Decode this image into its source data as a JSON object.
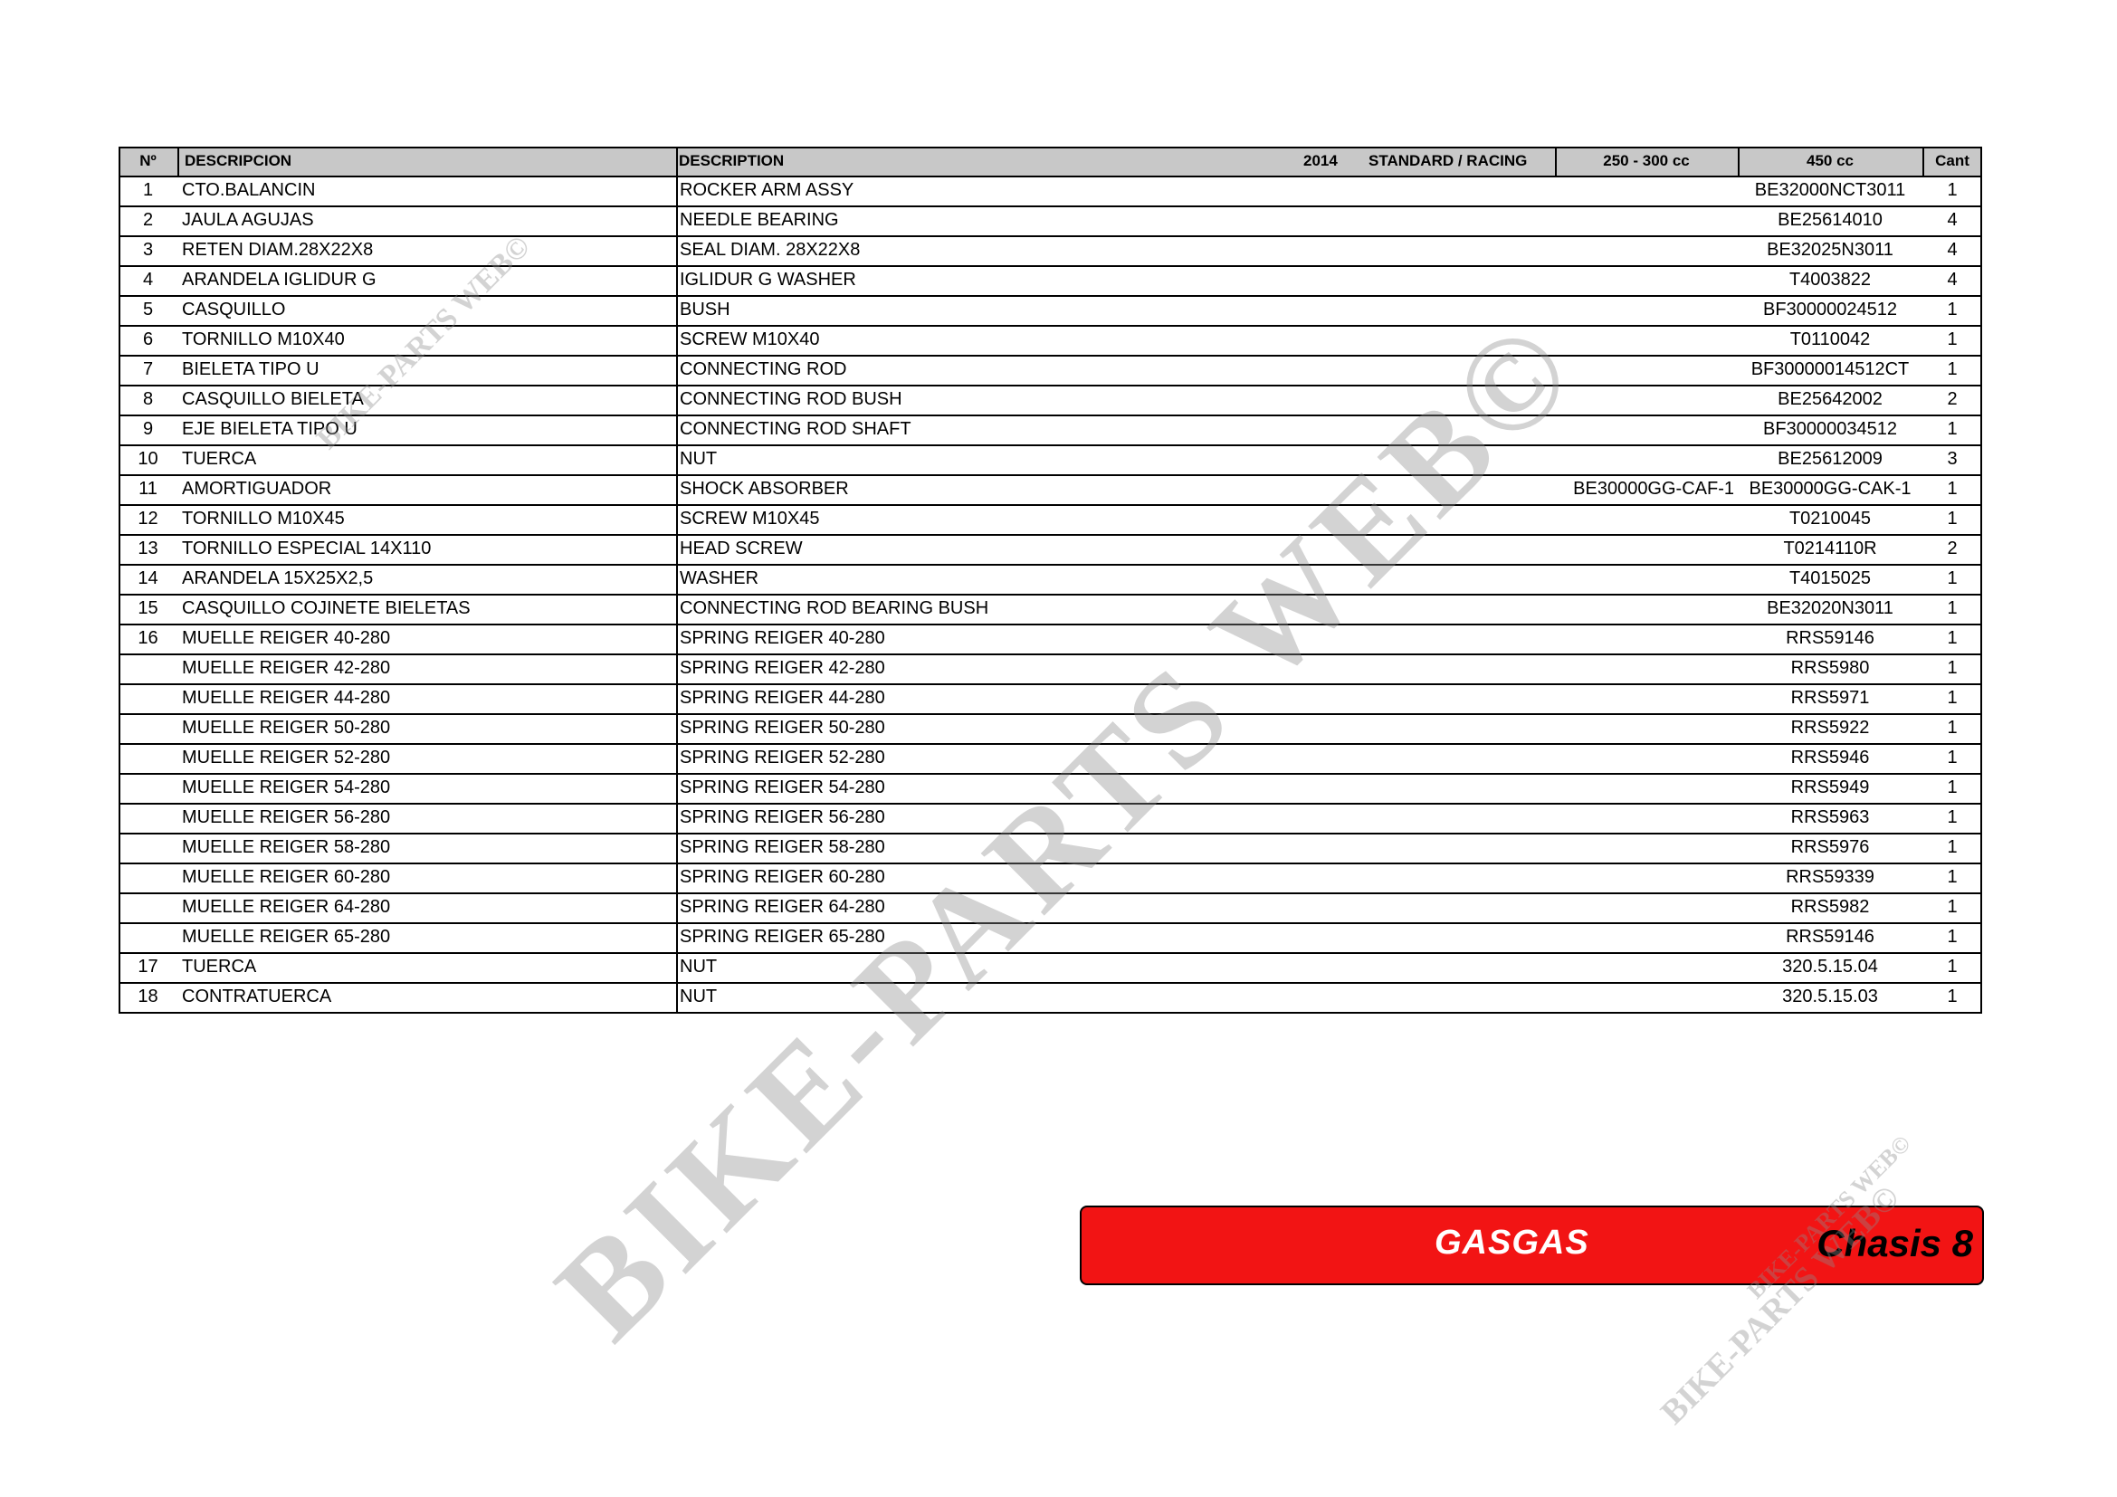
{
  "header": {
    "columns": {
      "no": "Nº",
      "descripcion": "DESCRIPCION",
      "description": "DESCRIPTION",
      "year": "2014",
      "version": "STANDARD / RACING",
      "ref_250": "250 - 300 cc",
      "ref_450": "450 cc",
      "cant": "Cant"
    }
  },
  "table": {
    "rows": [
      {
        "no": 1,
        "descripcion": "CTO.BALANCIN",
        "description": "ROCKER ARM ASSY",
        "ref_450": "BE32000NCT3011",
        "cant": 1
      },
      {
        "no": 2,
        "descripcion": "JAULA AGUJAS",
        "description": "NEEDLE BEARING",
        "ref_450": "BE25614010",
        "cant": 4
      },
      {
        "no": 3,
        "descripcion": "RETEN DIAM.28X22X8",
        "description": "SEAL DIAM. 28X22X8",
        "ref_450": "BE32025N3011",
        "cant": 4
      },
      {
        "no": 4,
        "descripcion": "ARANDELA IGLIDUR G",
        "description": "IGLIDUR G WASHER",
        "ref_450": "T4003822",
        "cant": 4
      },
      {
        "no": 5,
        "descripcion": "CASQUILLO",
        "description": "BUSH",
        "ref_450": "BF30000024512",
        "cant": 1
      },
      {
        "no": 6,
        "descripcion": "TORNILLO M10X40",
        "description": "SCREW M10X40",
        "ref_450": "T0110042",
        "cant": 1
      },
      {
        "no": 7,
        "descripcion": "BIELETA TIPO U",
        "description": "CONNECTING ROD",
        "ref_450": "BF30000014512CT",
        "cant": 1
      },
      {
        "no": 8,
        "descripcion": "CASQUILLO BIELETA",
        "description": "CONNECTING ROD BUSH",
        "ref_450": "BE25642002",
        "cant": 2
      },
      {
        "no": 9,
        "descripcion": "EJE BIELETA TIPO U",
        "description": "CONNECTING ROD SHAFT",
        "ref_450": "BF30000034512",
        "cant": 1
      },
      {
        "no": 10,
        "descripcion": "TUERCA",
        "description": "NUT",
        "ref_450": "BE25612009",
        "cant": 3
      },
      {
        "no": 11,
        "descripcion": "AMORTIGUADOR",
        "description": "SHOCK ABSORBER",
        "ref_250": "BE30000GG-CAF-1",
        "ref_450": "BE30000GG-CAK-1",
        "cant": 1
      },
      {
        "no": 12,
        "descripcion": "TORNILLO M10X45",
        "description": "SCREW M10X45",
        "ref_450": "T0210045",
        "cant": 1
      },
      {
        "no": 13,
        "descripcion": "TORNILLO ESPECIAL 14X110",
        "description": "HEAD SCREW",
        "ref_450": "T0214110R",
        "cant": 2
      },
      {
        "no": 14,
        "descripcion": "ARANDELA 15X25X2,5",
        "description": "WASHER",
        "ref_450": "T4015025",
        "cant": 1
      },
      {
        "no": 15,
        "descripcion": "CASQUILLO COJINETE BIELETAS",
        "description": "CONNECTING ROD BEARING BUSH",
        "ref_450": "BE32020N3011",
        "cant": 1
      },
      {
        "no": 16,
        "descripcion": "MUELLE REIGER 40-280",
        "description": "SPRING REIGER 40-280",
        "ref_450": "RRS59146",
        "cant": 1
      },
      {
        "descripcion": "MUELLE REIGER 42-280",
        "description": "SPRING REIGER 42-280",
        "ref_450": "RRS5980",
        "cant": 1
      },
      {
        "descripcion": "MUELLE REIGER 44-280",
        "description": "SPRING REIGER 44-280",
        "ref_450": "RRS5971",
        "cant": 1
      },
      {
        "descripcion": "MUELLE REIGER 50-280",
        "description": "SPRING REIGER 50-280",
        "ref_450": "RRS5922",
        "cant": 1
      },
      {
        "descripcion": "MUELLE REIGER 52-280",
        "description": "SPRING REIGER 52-280",
        "ref_450": "RRS5946",
        "cant": 1
      },
      {
        "descripcion": "MUELLE REIGER 54-280",
        "description": "SPRING REIGER 54-280",
        "ref_450": "RRS5949",
        "cant": 1
      },
      {
        "descripcion": "MUELLE REIGER 56-280",
        "description": "SPRING REIGER 56-280",
        "ref_450": "RRS5963",
        "cant": 1
      },
      {
        "descripcion": "MUELLE REIGER 58-280",
        "description": "SPRING REIGER 58-280",
        "ref_450": "RRS5976",
        "cant": 1
      },
      {
        "descripcion": "MUELLE REIGER 60-280",
        "description": "SPRING REIGER 60-280",
        "ref_450": "RRS59339",
        "cant": 1
      },
      {
        "descripcion": "MUELLE REIGER 64-280",
        "description": "SPRING REIGER 64-280",
        "ref_450": "RRS5982",
        "cant": 1
      },
      {
        "descripcion": "MUELLE REIGER 65-280",
        "description": "SPRING REIGER 65-280",
        "ref_450": "RRS59146",
        "cant": 1
      },
      {
        "no": 17,
        "descripcion": "TUERCA",
        "description": "NUT",
        "ref_450": "320.5.15.04",
        "cant": 1
      },
      {
        "no": 18,
        "descripcion": "CONTRATUERCA",
        "description": "NUT",
        "ref_450": "320.5.15.03",
        "cant": 1
      }
    ]
  },
  "banner": {
    "brand": "GASGAS",
    "section": "Chasis 8"
  },
  "watermarks": [
    "BIKE-PARTS WEB©",
    "BIKE-PARTS WEB©",
    "BIKE-PARTS WEB©",
    "BIKE-PARTS WEB©"
  ]
}
